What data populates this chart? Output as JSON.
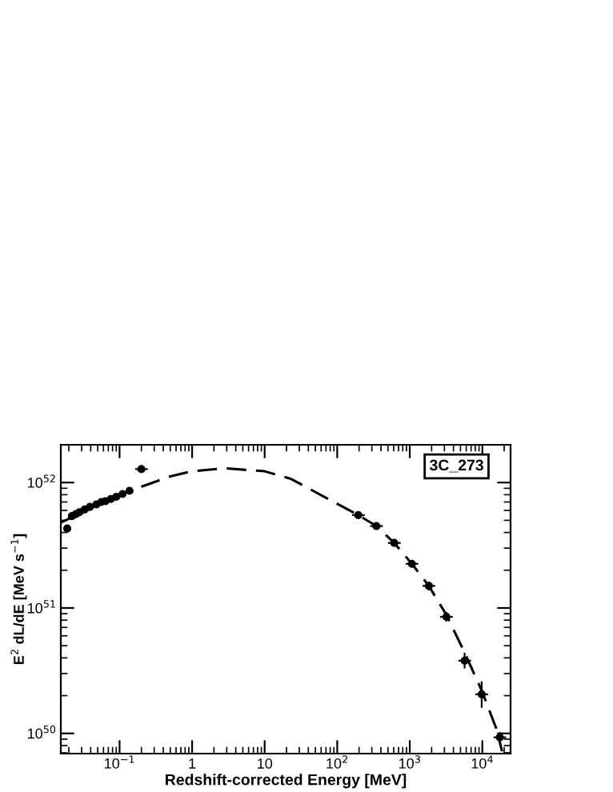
{
  "chart_data": {
    "type": "scatter",
    "xlabel": "Redshift-corrected Energy [MeV]",
    "ylabel": "E$^{2}$ dL/dE [MeV s$^{−1}$]",
    "annotations": [
      "3C_273"
    ],
    "log": "xy",
    "xlim": [
      0.0155,
      24500
    ],
    "ylim": [
      6.9e+49,
      2e+52
    ],
    "xticks": [
      {
        "value": 0.1,
        "label": "10$^{−1}$"
      },
      1,
      10,
      {
        "value": 100,
        "label": "10$^{2}$"
      },
      {
        "value": 1000,
        "label": "10$^{3}$"
      },
      {
        "value": 10000,
        "label": "10$^{4}$"
      }
    ],
    "yticks": [
      {
        "value": 1e+50,
        "label": "10$^{50}$"
      },
      {
        "value": 1e+51,
        "label": "10$^{51}$"
      },
      {
        "value": 1e+52,
        "label": "10$^{52}$"
      }
    ],
    "grid": false,
    "series": [
      {
        "type": "line",
        "color": "#000000",
        "line_style": "dashed",
        "marker": "none",
        "x": [
          0.0155,
          0.05,
          0.14,
          0.5,
          1,
          2.8,
          10,
          23,
          195,
          347,
          610,
          1070,
          1830,
          3200,
          5700,
          9800,
          15800,
          18700
        ],
        "values": [
          4.8e+51,
          6.6e+51,
          8.6e+51,
          1.12e+52,
          1.23e+52,
          1.3e+52,
          1.23e+52,
          1.07e+52,
          5.5e+51,
          4.5e+51,
          3.3e+51,
          2.25e+51,
          1.5e+51,
          8.8e+50,
          4.4e+50,
          2.2e+50,
          1.07e+50,
          7.2e+49
        ]
      },
      {
        "color": "#000000",
        "marker": "circle",
        "x": [
          0.019,
          0.022,
          0.025,
          0.028,
          0.033,
          0.039,
          0.048,
          0.056,
          0.064,
          0.076,
          0.09,
          0.11,
          0.137,
          0.2,
          195,
          347,
          610,
          1070,
          1830,
          3200,
          5700,
          9800,
          17400
        ],
        "values": [
          4.3e+51,
          5.4e+51,
          5.6e+51,
          5.8e+51,
          6.1e+51,
          6.4e+51,
          6.7e+51,
          7e+51,
          7.1e+51,
          7.4e+51,
          7.7e+51,
          8.1e+51,
          8.6e+51,
          1.28e+52,
          5.5e+51,
          4.5e+51,
          3.3e+51,
          2.25e+51,
          1.5e+51,
          8.5e+50,
          3.8e+50,
          2.05e+50,
          9.3e+49
        ],
        "errors": [
          null,
          null,
          null,
          null,
          null,
          null,
          null,
          null,
          null,
          null,
          null,
          null,
          null,
          [
            1.2e+52,
            1.37e+52
          ],
          [
            5.2e+51,
            5.8e+51
          ],
          [
            4.25e+51,
            4.75e+51
          ],
          [
            3.1e+51,
            3.5e+51
          ],
          [
            2.1e+51,
            2.4e+51
          ],
          [
            1.38e+51,
            1.62e+51
          ],
          [
            7.8e+50,
            9.3e+50
          ],
          [
            3.3e+50,
            4.4e+50
          ],
          [
            1.6e+50,
            2.6e+50
          ],
          [
            8.5e+49,
            1.02e+50
          ]
        ],
        "xerrors": [
          null,
          null,
          null,
          null,
          null,
          null,
          null,
          null,
          null,
          null,
          null,
          null,
          null,
          [
            0.164,
            0.245
          ],
          [
            160,
            240
          ],
          [
            285,
            425
          ],
          [
            500,
            750
          ],
          [
            880,
            1310
          ],
          [
            1500,
            2240
          ],
          [
            2620,
            3920
          ],
          [
            4670,
            6980
          ],
          [
            8030,
            12000
          ],
          [
            14300,
            21300
          ]
        ]
      }
    ]
  }
}
